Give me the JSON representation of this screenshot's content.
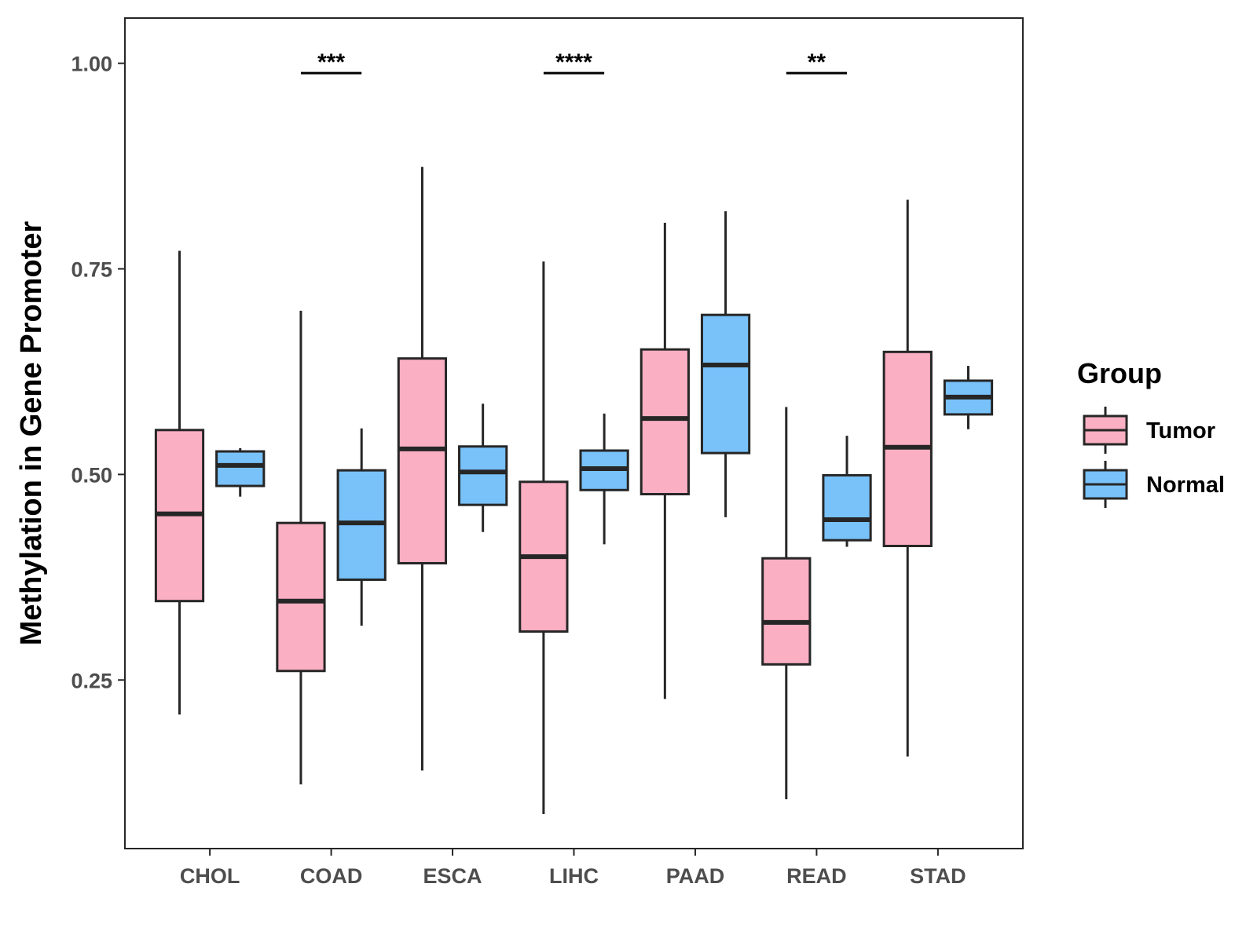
{
  "chart_data": {
    "type": "boxplot",
    "title": "",
    "xlabel": "",
    "ylabel": "Methylation in Gene Promoter",
    "ylim": [
      0.045,
      1.055
    ],
    "yticks": [
      0.25,
      0.5,
      0.75,
      1.0
    ],
    "ytick_labels": [
      "0.25",
      "0.50",
      "0.75",
      "1.00"
    ],
    "categories": [
      "CHOL",
      "COAD",
      "ESCA",
      "LIHC",
      "PAAD",
      "READ",
      "STAD"
    ],
    "legend": {
      "title": "Group",
      "position": "right",
      "entries": [
        {
          "name": "Tumor",
          "color": "#fbafc3"
        },
        {
          "name": "Normal",
          "color": "#78c1f9"
        }
      ]
    },
    "series": [
      {
        "name": "Tumor",
        "color": "#fbafc3",
        "boxes": [
          {
            "category": "CHOL",
            "whisker_low": 0.208,
            "q1": 0.346,
            "median": 0.452,
            "q3": 0.554,
            "whisker_high": 0.772
          },
          {
            "category": "COAD",
            "whisker_low": 0.123,
            "q1": 0.261,
            "median": 0.346,
            "q3": 0.441,
            "whisker_high": 0.699
          },
          {
            "category": "ESCA",
            "whisker_low": 0.14,
            "q1": 0.392,
            "median": 0.531,
            "q3": 0.641,
            "whisker_high": 0.874
          },
          {
            "category": "LIHC",
            "whisker_low": 0.087,
            "q1": 0.309,
            "median": 0.4,
            "q3": 0.491,
            "whisker_high": 0.759
          },
          {
            "category": "PAAD",
            "whisker_low": 0.227,
            "q1": 0.476,
            "median": 0.568,
            "q3": 0.652,
            "whisker_high": 0.806
          },
          {
            "category": "READ",
            "whisker_low": 0.105,
            "q1": 0.269,
            "median": 0.32,
            "q3": 0.398,
            "whisker_high": 0.582
          },
          {
            "category": "STAD",
            "whisker_low": 0.157,
            "q1": 0.413,
            "median": 0.533,
            "q3": 0.649,
            "whisker_high": 0.834
          }
        ]
      },
      {
        "name": "Normal",
        "color": "#78c1f9",
        "boxes": [
          {
            "category": "CHOL",
            "whisker_low": 0.473,
            "q1": 0.486,
            "median": 0.511,
            "q3": 0.528,
            "whisker_high": 0.532
          },
          {
            "category": "COAD",
            "whisker_low": 0.316,
            "q1": 0.372,
            "median": 0.441,
            "q3": 0.505,
            "whisker_high": 0.556
          },
          {
            "category": "ESCA",
            "whisker_low": 0.43,
            "q1": 0.463,
            "median": 0.503,
            "q3": 0.534,
            "whisker_high": 0.586
          },
          {
            "category": "LIHC",
            "whisker_low": 0.415,
            "q1": 0.481,
            "median": 0.507,
            "q3": 0.529,
            "whisker_high": 0.574
          },
          {
            "category": "PAAD",
            "whisker_low": 0.448,
            "q1": 0.526,
            "median": 0.633,
            "q3": 0.694,
            "whisker_high": 0.82
          },
          {
            "category": "READ",
            "whisker_low": 0.412,
            "q1": 0.42,
            "median": 0.445,
            "q3": 0.499,
            "whisker_high": 0.547
          },
          {
            "category": "STAD",
            "whisker_low": 0.555,
            "q1": 0.573,
            "median": 0.594,
            "q3": 0.614,
            "whisker_high": 0.632
          }
        ]
      }
    ],
    "significance": [
      {
        "category": "COAD",
        "label": "***",
        "y": 0.988
      },
      {
        "category": "LIHC",
        "label": "****",
        "y": 0.988
      },
      {
        "category": "READ",
        "label": "**",
        "y": 0.988
      }
    ],
    "grid": false
  }
}
